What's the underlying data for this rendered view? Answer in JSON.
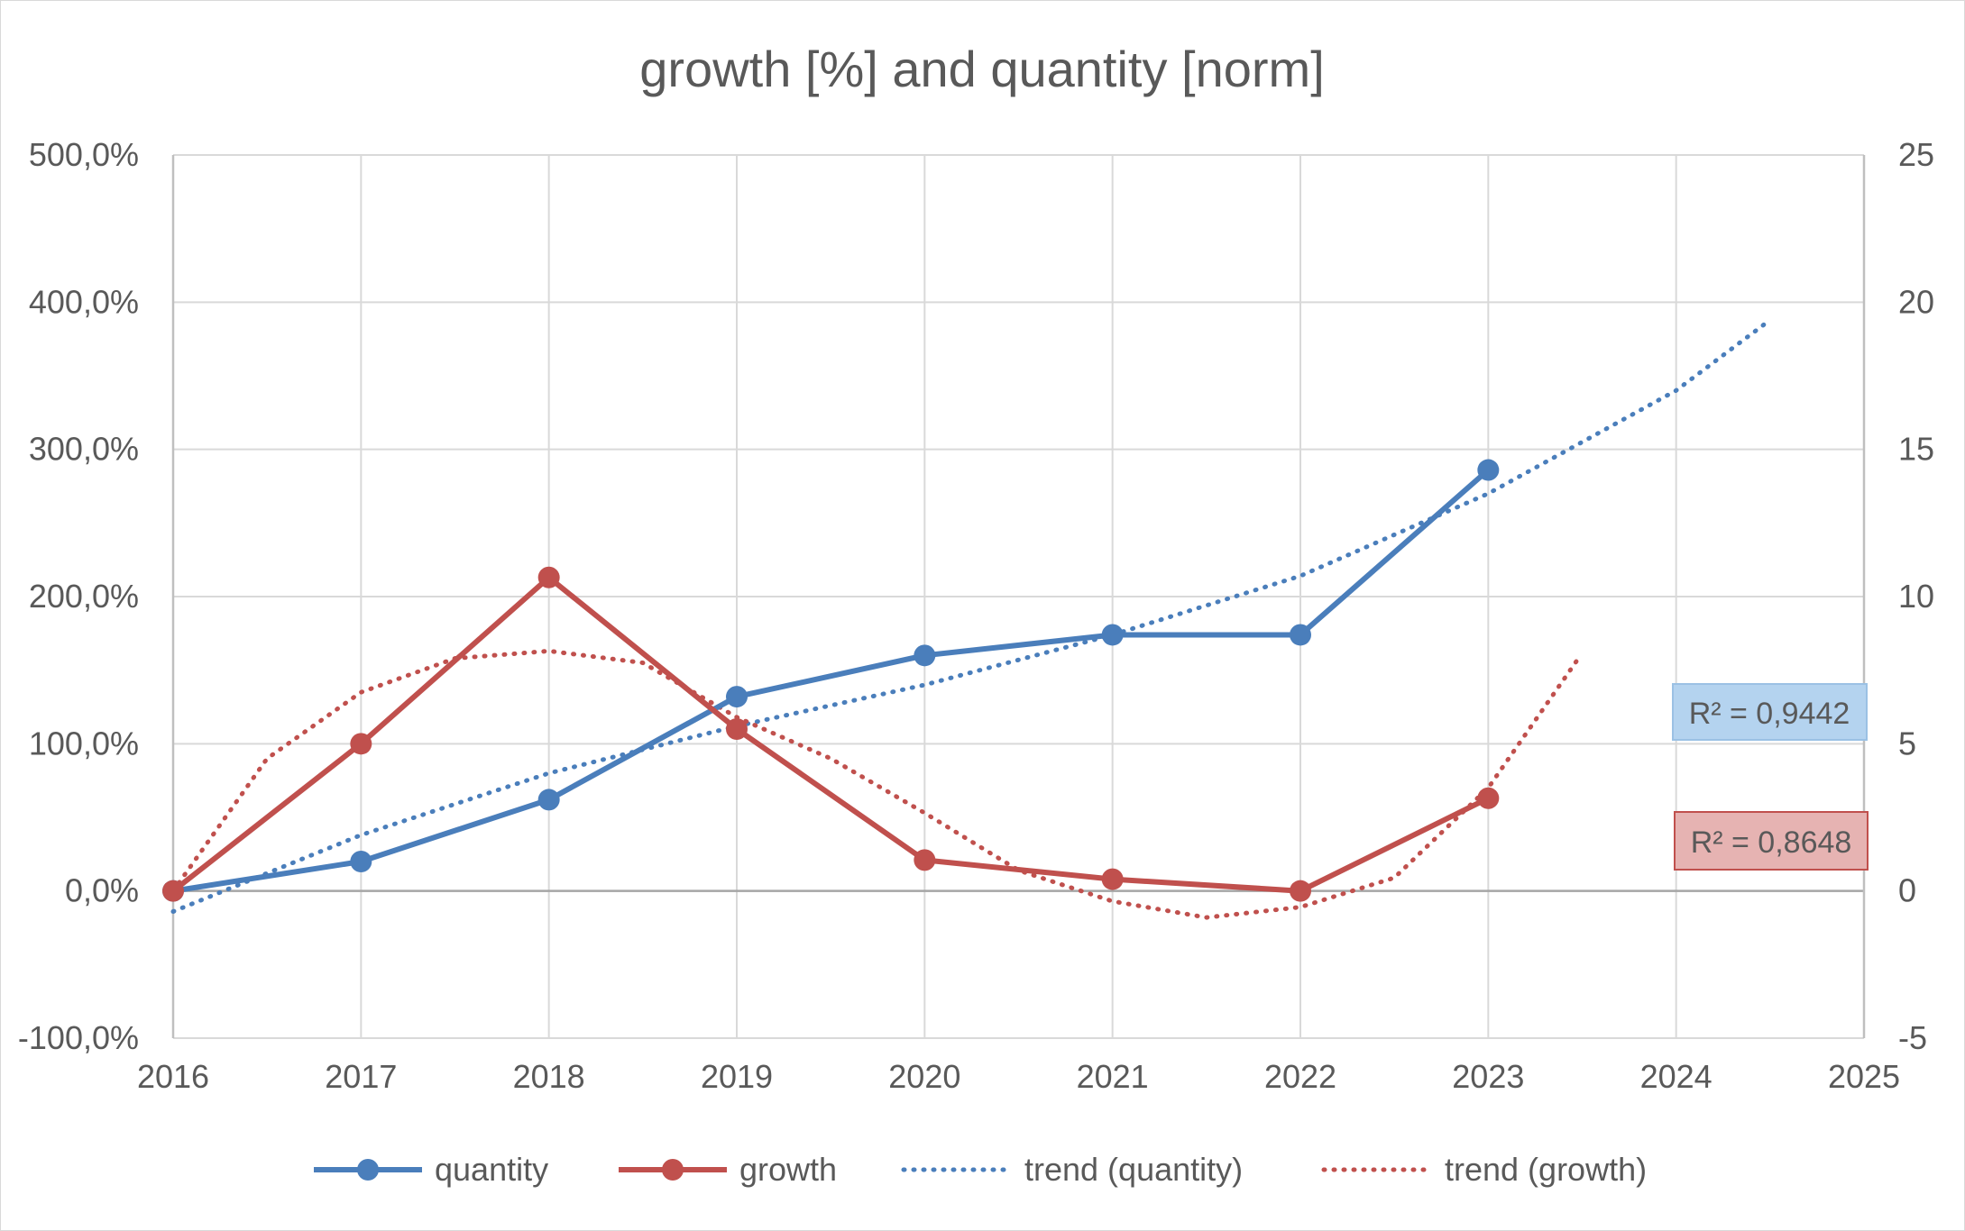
{
  "chart_data": {
    "type": "line",
    "title": "growth [%] and quantity [norm]",
    "x": [
      2016,
      2017,
      2018,
      2019,
      2020,
      2021,
      2022,
      2023
    ],
    "xlim": [
      2016,
      2025
    ],
    "x_ticks": [
      "2016",
      "2017",
      "2018",
      "2019",
      "2020",
      "2021",
      "2022",
      "2023",
      "2024",
      "2025"
    ],
    "y_left": {
      "lim": [
        -100,
        500
      ],
      "ticks": [
        "-100,0%",
        "0,0%",
        "100,0%",
        "200,0%",
        "300,0%",
        "400,0%",
        "500,0%"
      ]
    },
    "y_right": {
      "lim": [
        -5,
        25
      ],
      "ticks": [
        "-5",
        "0",
        "5",
        "10",
        "15",
        "20",
        "25"
      ]
    },
    "grid": true,
    "legend_position": "bottom",
    "series": [
      {
        "name": "quantity",
        "axis": "right",
        "color": "#4a7ebb",
        "values": [
          0.0,
          1.0,
          3.1,
          6.6,
          8.0,
          8.7,
          8.7,
          14.3
        ]
      },
      {
        "name": "growth",
        "axis": "left",
        "color": "#c0504d",
        "values": [
          0.0,
          100.0,
          213.0,
          110.0,
          21.0,
          8.0,
          0.0,
          63.0
        ]
      }
    ],
    "trendlines": [
      {
        "name": "trend (quantity)",
        "axis": "right",
        "color": "#4a7ebb",
        "style": "dotted",
        "r2_label": "R² = 0,9442",
        "points": [
          [
            2016,
            -0.7
          ],
          [
            2017,
            1.9
          ],
          [
            2018,
            4.0
          ],
          [
            2019,
            5.6
          ],
          [
            2020,
            7.0
          ],
          [
            2021,
            8.7
          ],
          [
            2022,
            10.7
          ],
          [
            2023,
            13.5
          ],
          [
            2024,
            17.0
          ],
          [
            2024.48,
            19.3
          ]
        ]
      },
      {
        "name": "trend (growth)",
        "axis": "left",
        "color": "#c0504d",
        "style": "dotted",
        "r2_label": "R² = 0,8648",
        "points": [
          [
            2016,
            0
          ],
          [
            2016.5,
            90
          ],
          [
            2017,
            135
          ],
          [
            2017.5,
            158
          ],
          [
            2018,
            163
          ],
          [
            2018.5,
            155
          ],
          [
            2019,
            118
          ],
          [
            2019.5,
            90
          ],
          [
            2020,
            53
          ],
          [
            2020.5,
            14
          ],
          [
            2021,
            -7
          ],
          [
            2021.5,
            -18
          ],
          [
            2022,
            -11
          ],
          [
            2022.5,
            9
          ],
          [
            2023,
            70
          ],
          [
            2023.48,
            158
          ]
        ]
      }
    ]
  }
}
